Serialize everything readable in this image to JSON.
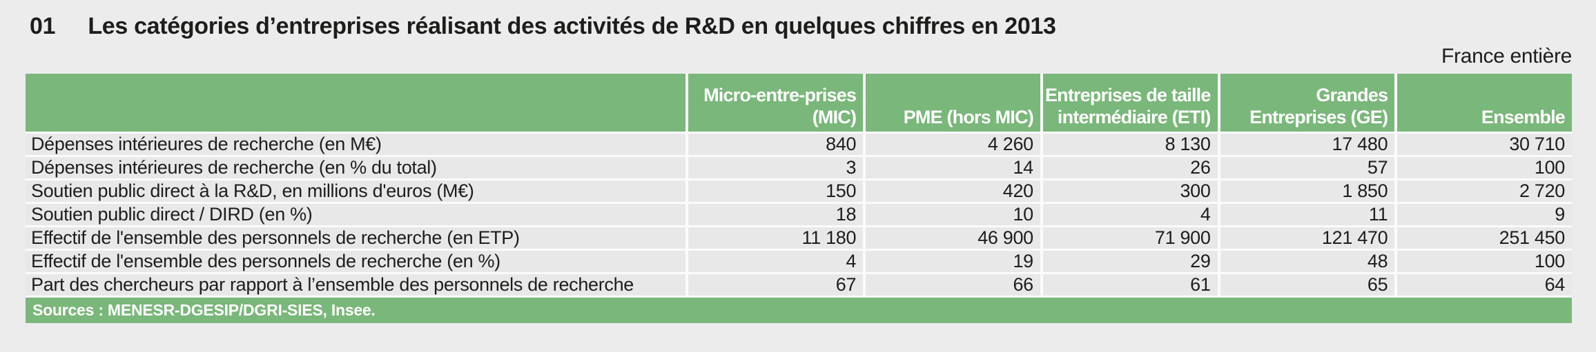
{
  "figure": {
    "number": "01",
    "title": "Les catégories d’entreprises réalisant des activités de R&D en quelques chiffres en 2013",
    "region_note": "France entière"
  },
  "chart_data": {
    "type": "table",
    "title": "Les catégories d’entreprises réalisant des activités de R&D en quelques chiffres en 2013",
    "columns": [
      {
        "label": "Micro-entre-prises\n(MIC)"
      },
      {
        "label": "PME (hors MIC)"
      },
      {
        "label": "Entreprises de taille\nintermédiaire (ETI)"
      },
      {
        "label": "Grandes\nEntreprises (GE)"
      },
      {
        "label": "Ensemble"
      }
    ],
    "rows": [
      {
        "label": "Dépenses intérieures de recherche (en M€)",
        "values": [
          "840",
          "4 260",
          "8 130",
          "17 480",
          "30 710"
        ]
      },
      {
        "label": "Dépenses intérieures de recherche (en % du total)",
        "values": [
          "3",
          "14",
          "26",
          "57",
          "100"
        ]
      },
      {
        "label": "Soutien public direct à la R&D, en millions d'euros (M€)",
        "values": [
          "150",
          "420",
          "300",
          "1 850",
          "2 720"
        ]
      },
      {
        "label": "Soutien public direct / DIRD (en %)",
        "values": [
          "18",
          "10",
          "4",
          "11",
          "9"
        ]
      },
      {
        "label": "Effectif de l'ensemble des personnels de recherche (en ETP)",
        "values": [
          "11 180",
          "46 900",
          "71 900",
          "121 470",
          "251 450"
        ]
      },
      {
        "label": "Effectif de l'ensemble des personnels de recherche (en %)",
        "values": [
          "4",
          "19",
          "29",
          "48",
          "100"
        ]
      },
      {
        "label": "Part des chercheurs par rapport à l’ensemble des personnels de recherche",
        "values": [
          "67",
          "66",
          "61",
          "65",
          "64"
        ]
      }
    ],
    "source": "Sources : MENESR-DGESIP/DGRI-SIES, Insee."
  },
  "colors": {
    "header_green": "#7ab77a",
    "row_bg": "#e8e8e8",
    "page_bg": "#ececec",
    "separator": "#fbfbfb",
    "header_text": "#ffffff",
    "body_text": "#1d1d1b"
  }
}
